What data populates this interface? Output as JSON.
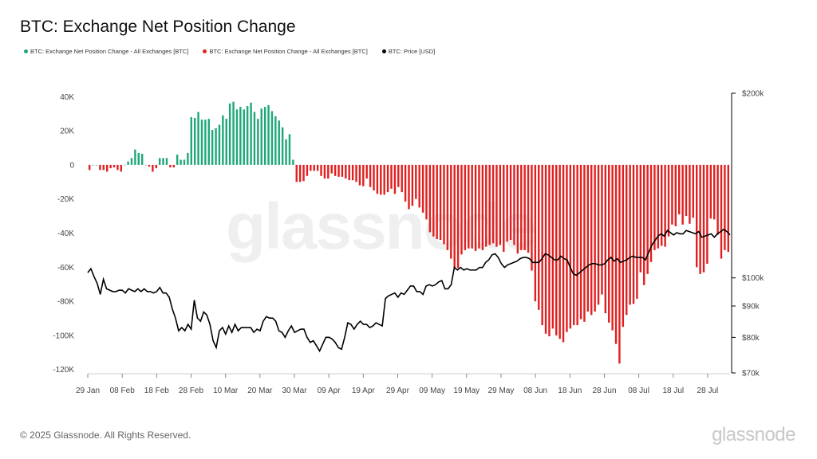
{
  "chart_data": {
    "type": "bar",
    "title": "BTC: Exchange Net Position Change",
    "legend": [
      {
        "label": "BTC: Exchange Net Position Change - All Exchanges [BTC]",
        "color": "#1fa77a"
      },
      {
        "label": "BTC: Exchange Net Position Change - All Exchanges [BTC]",
        "color": "#e02020"
      },
      {
        "label": "BTC: Price [USD]",
        "color": "#000000"
      }
    ],
    "legend_placement": "top-left",
    "grid": false,
    "y_left": {
      "ticks": [
        "40K",
        "20K",
        "0",
        "-20K",
        "-40K",
        "-60K",
        "-80K",
        "-100K",
        "-120K"
      ],
      "range": [
        -122000,
        42000
      ]
    },
    "y_right": {
      "ticks": [
        "$200k",
        "$100k",
        "$90k",
        "$80k",
        "$70k"
      ],
      "scale": "log",
      "range": [
        70000,
        200000
      ]
    },
    "x_ticks": [
      "29 Jan",
      "08 Feb",
      "18 Feb",
      "28 Feb",
      "10 Mar",
      "20 Mar",
      "30 Mar",
      "09 Apr",
      "19 Apr",
      "29 Apr",
      "09 May",
      "19 May",
      "29 May",
      "08 Jun",
      "18 Jun",
      "28 Jun",
      "08 Jul",
      "18 Jul",
      "28 Jul"
    ],
    "x_range": [
      "2025-01-29",
      "2025-07-31"
    ],
    "net_position_change_btc": [
      -3000,
      0,
      0,
      -3000,
      -3000,
      -4000,
      -2000,
      -1500,
      -3000,
      -4000,
      0,
      2000,
      4000,
      9000,
      7000,
      6500,
      0,
      -1000,
      -4000,
      -2000,
      4000,
      4000,
      4000,
      -1500,
      -1500,
      6000,
      3000,
      3000,
      7000,
      28000,
      27500,
      31000,
      26500,
      26500,
      27000,
      20500,
      21500,
      23500,
      29000,
      27000,
      36000,
      37000,
      32500,
      34000,
      32500,
      34500,
      36500,
      31000,
      27000,
      33000,
      34000,
      35000,
      31500,
      28500,
      26000,
      22000,
      15000,
      18000,
      3000,
      -10000,
      -10000,
      -9500,
      -6500,
      -3500,
      -3500,
      -3500,
      -6500,
      -8000,
      -8000,
      -5000,
      -6500,
      -7000,
      -7000,
      -8000,
      -9000,
      -9000,
      -10000,
      -12000,
      -12500,
      -8000,
      -13000,
      -15000,
      -17000,
      -17500,
      -17500,
      -16000,
      -14000,
      -17000,
      -13000,
      -16000,
      -21500,
      -26000,
      -24000,
      -20000,
      -25000,
      -28000,
      -32000,
      -39500,
      -42000,
      -43500,
      -44000,
      -46500,
      -50000,
      -55000,
      -60500,
      -60500,
      -52500,
      -50000,
      -49000,
      -49000,
      -50500,
      -49000,
      -50000,
      -48000,
      -47000,
      -46000,
      -48000,
      -47000,
      -51000,
      -45000,
      -44000,
      -47000,
      -52000,
      -50000,
      -50000,
      -51500,
      -62000,
      -80000,
      -85000,
      -94000,
      -99000,
      -100500,
      -96000,
      -100000,
      -102000,
      -104000,
      -98000,
      -96000,
      -94000,
      -94000,
      -90500,
      -92000,
      -86000,
      -88000,
      -86000,
      -82000,
      -76000,
      -87000,
      -92500,
      -97000,
      -105000,
      -116500,
      -95000,
      -88000,
      -82000,
      -81500,
      -78500,
      -63000,
      -70500,
      -64000,
      -57000,
      -50000,
      -49000,
      -47500,
      -48000,
      -42000,
      -35000,
      -36000,
      -29000,
      -35000,
      -30000,
      -34500,
      -31000,
      -60000,
      -64000,
      -63000,
      -58000,
      -31500,
      -32000,
      -41000,
      -55000,
      -50000,
      -51000
    ],
    "price_usd": [
      102000,
      103500,
      100500,
      98000,
      94000,
      99500,
      96000,
      95500,
      95000,
      95000,
      95500,
      95500,
      94500,
      96000,
      95500,
      95000,
      96000,
      95000,
      96000,
      95000,
      95000,
      94500,
      95000,
      96500,
      94500,
      94500,
      93000,
      89000,
      86000,
      82000,
      83000,
      82000,
      84000,
      82500,
      92000,
      86000,
      85000,
      88000,
      87000,
      84000,
      79000,
      77000,
      82000,
      83000,
      81000,
      83500,
      81500,
      84000,
      82000,
      83000,
      83000,
      83000,
      83000,
      81500,
      82500,
      82000,
      85000,
      86500,
      86000,
      86000,
      85000,
      82000,
      81500,
      80000,
      82000,
      83500,
      81500,
      82000,
      82500,
      82500,
      80000,
      78500,
      79000,
      77500,
      76000,
      78000,
      80000,
      80000,
      79500,
      78500,
      77000,
      76500,
      80000,
      84500,
      84000,
      82500,
      84000,
      85000,
      84000,
      84000,
      83000,
      83500,
      84500,
      84000,
      83500,
      92500,
      93500,
      94000,
      94500,
      93000,
      94500,
      94000,
      95500,
      97000,
      97000,
      95000,
      95000,
      94000,
      97000,
      97500,
      97000,
      97500,
      98500,
      99000,
      96000,
      96000,
      97500,
      104000,
      103000,
      104000,
      103000,
      103500,
      103000,
      103000,
      103000,
      104000,
      104000,
      106000,
      107000,
      109000,
      109500,
      108000,
      105500,
      104000,
      105000,
      105500,
      106000,
      106500,
      107500,
      108000,
      108000,
      107500,
      106000,
      106000,
      106000,
      107500,
      109500,
      109000,
      108000,
      107000,
      107000,
      108500,
      107500,
      107000,
      104000,
      101500,
      101000,
      102000,
      103000,
      104000,
      105000,
      105500,
      105500,
      105000,
      105000,
      105500,
      107000,
      108000,
      106500,
      107500,
      106000,
      106500,
      107000,
      108000,
      108500,
      108000,
      108000,
      108000,
      107000,
      110000,
      113000,
      115000,
      117000,
      118000,
      117000,
      119500,
      118500,
      117500,
      118500,
      118000,
      118000,
      119500,
      119000,
      118500,
      118000,
      119000,
      116500,
      117000,
      117500,
      118000,
      116500,
      118000,
      119000,
      120000,
      119000,
      117500
    ]
  },
  "watermark": "glassnode",
  "footer": {
    "copyright": "© 2025 Glassnode. All Rights Reserved.",
    "brand": "glassnode"
  }
}
